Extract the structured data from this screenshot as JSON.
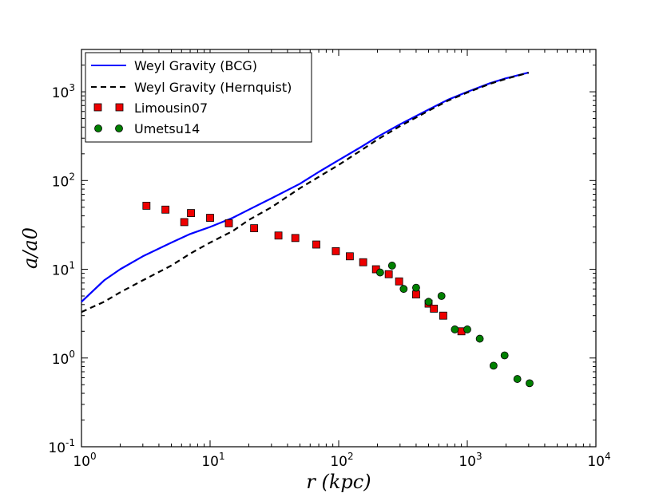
{
  "chart_data": {
    "type": "scatter",
    "xscale": "log",
    "yscale": "log",
    "xlim": [
      1,
      10000
    ],
    "ylim": [
      0.1,
      3000
    ],
    "xlabel": "r (kpc)",
    "ylabel": "a/a0",
    "x_ticks": [
      {
        "base": "10",
        "exp": "0"
      },
      {
        "base": "10",
        "exp": "1"
      },
      {
        "base": "10",
        "exp": "2"
      },
      {
        "base": "10",
        "exp": "3"
      },
      {
        "base": "10",
        "exp": "4"
      }
    ],
    "y_ticks": [
      {
        "base": "10",
        "exp": "-1"
      },
      {
        "base": "10",
        "exp": "0"
      },
      {
        "base": "10",
        "exp": "1"
      },
      {
        "base": "10",
        "exp": "2"
      },
      {
        "base": "10",
        "exp": "3"
      }
    ],
    "legend": {
      "position": "top-left",
      "entries": [
        "Weyl Gravity (BCG)",
        "Weyl Gravity (Hernquist)",
        "Limousin07",
        "Umetsu14"
      ]
    },
    "series": [
      {
        "name": "Weyl Gravity (BCG)",
        "kind": "line",
        "style": "solid",
        "color": "#0000ff",
        "x": [
          1,
          1.5,
          2,
          3,
          5,
          7,
          10,
          15,
          20,
          30,
          50,
          70,
          100,
          150,
          200,
          300,
          500,
          700,
          1000,
          1500,
          2000,
          3000
        ],
        "y": [
          4.3,
          7.5,
          10,
          14,
          20,
          25,
          30,
          38,
          47,
          63,
          92,
          125,
          170,
          240,
          310,
          430,
          630,
          810,
          1000,
          1250,
          1420,
          1650
        ]
      },
      {
        "name": "Weyl Gravity (Hernquist)",
        "kind": "line",
        "style": "dashed",
        "color": "#000000",
        "x": [
          1,
          1.5,
          2,
          3,
          5,
          7,
          10,
          15,
          20,
          30,
          50,
          70,
          100,
          150,
          200,
          300,
          500,
          700,
          1000,
          1500,
          2000,
          3000
        ],
        "y": [
          3.3,
          4.3,
          5.5,
          7.5,
          11,
          15,
          20,
          27,
          36,
          50,
          82,
          110,
          150,
          220,
          290,
          410,
          610,
          790,
          980,
          1230,
          1400,
          1640
        ]
      },
      {
        "name": "Limousin07",
        "kind": "marker",
        "marker": "square",
        "color": "#ee0000",
        "x": [
          3.2,
          4.5,
          6.3,
          7.1,
          10,
          14,
          22,
          34,
          46,
          67,
          95,
          122,
          155,
          195,
          245,
          295,
          400,
          500,
          550,
          650,
          900
        ],
        "y": [
          52,
          47,
          34,
          43,
          38,
          33,
          29,
          24,
          22.5,
          19,
          16,
          14,
          12,
          10,
          8.8,
          7.3,
          5.2,
          4.1,
          3.6,
          3.0,
          2.0
        ]
      },
      {
        "name": "Umetsu14",
        "kind": "marker",
        "marker": "circle",
        "color": "#008000",
        "x": [
          210,
          260,
          320,
          400,
          500,
          630,
          800,
          1000,
          1250,
          1600,
          1950,
          2450,
          3050
        ],
        "y": [
          9.2,
          11,
          6,
          6.2,
          4.3,
          5,
          2.1,
          2.1,
          1.65,
          0.82,
          1.07,
          0.58,
          0.52
        ]
      }
    ]
  }
}
